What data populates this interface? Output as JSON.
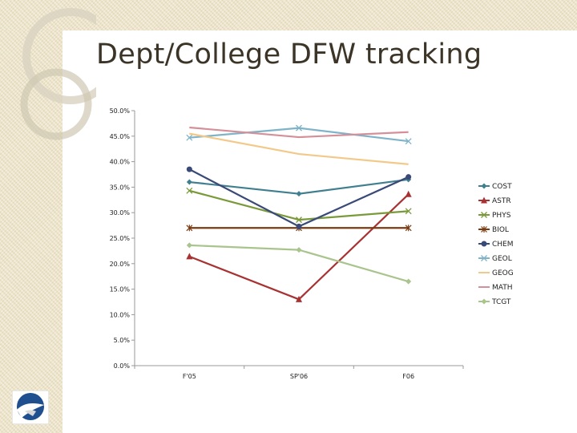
{
  "slide": {
    "title": "Dept/College DFW tracking"
  },
  "logo": {
    "icon": "eagle-logo-icon"
  },
  "chart_data": {
    "type": "line",
    "title": "",
    "xlabel": "",
    "ylabel": "",
    "categories": [
      "F'05",
      "SP'06",
      "F06"
    ],
    "ylim": [
      0,
      50
    ],
    "ytick_values": [
      0,
      5,
      10,
      15,
      20,
      25,
      30,
      35,
      40,
      45,
      50
    ],
    "ytick_labels": [
      "0.0%",
      "5.0%",
      "10.0%",
      "15.0%",
      "20.0%",
      "25.0%",
      "30.0%",
      "35.0%",
      "40.0%",
      "45.0%",
      "50.0%"
    ],
    "grid": false,
    "legend_position": "right",
    "series": [
      {
        "name": "COST",
        "values": [
          36.0,
          33.7,
          36.5
        ],
        "color": "#3f7f8f",
        "marker": "diamond"
      },
      {
        "name": "ASTR",
        "values": [
          21.4,
          13.0,
          33.6
        ],
        "color": "#a83232",
        "marker": "triangle"
      },
      {
        "name": "PHYS",
        "values": [
          34.3,
          28.6,
          30.3
        ],
        "color": "#7a9a3a",
        "marker": "x"
      },
      {
        "name": "BIOL",
        "values": [
          27.0,
          27.0,
          27.0
        ],
        "color": "#7a3b12",
        "marker": "star"
      },
      {
        "name": "CHEM",
        "values": [
          38.5,
          27.3,
          37.0
        ],
        "color": "#3a4a78",
        "marker": "circle"
      },
      {
        "name": "GEOL",
        "values": [
          44.7,
          46.6,
          44.0
        ],
        "color": "#7fb3c8",
        "marker": "x"
      },
      {
        "name": "GEOG",
        "values": [
          45.5,
          41.5,
          39.5
        ],
        "color": "#f3c98a",
        "marker": "none"
      },
      {
        "name": "MATH",
        "values": [
          46.7,
          44.8,
          45.8
        ],
        "color": "#d48f98",
        "marker": "none"
      },
      {
        "name": "TCGT",
        "values": [
          23.6,
          22.7,
          16.5
        ],
        "color": "#a9c48c",
        "marker": "diamond"
      }
    ]
  }
}
